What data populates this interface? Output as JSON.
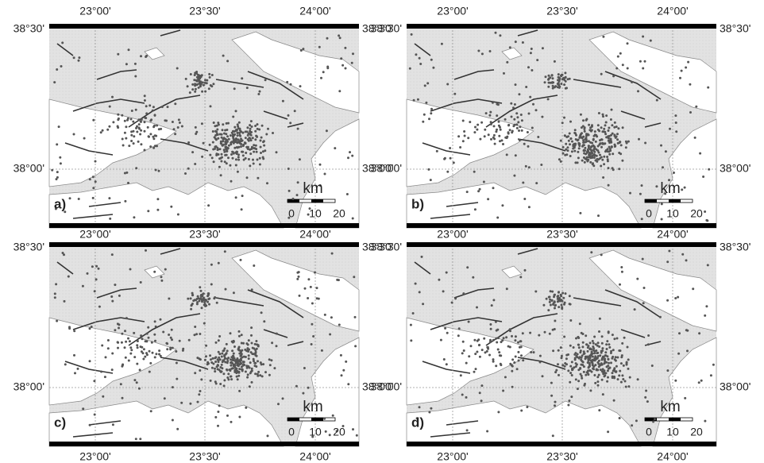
{
  "lon_labels": [
    "23°00'",
    "23°30'",
    "24°00'"
  ],
  "lat_labels": [
    "38°30'",
    "38°00'"
  ],
  "panels": [
    {
      "label": "a)"
    },
    {
      "label": "b)"
    },
    {
      "label": "c)"
    },
    {
      "label": "d)"
    }
  ],
  "scale": {
    "unit": "km",
    "labels": [
      "0",
      "10",
      "20"
    ]
  }
}
